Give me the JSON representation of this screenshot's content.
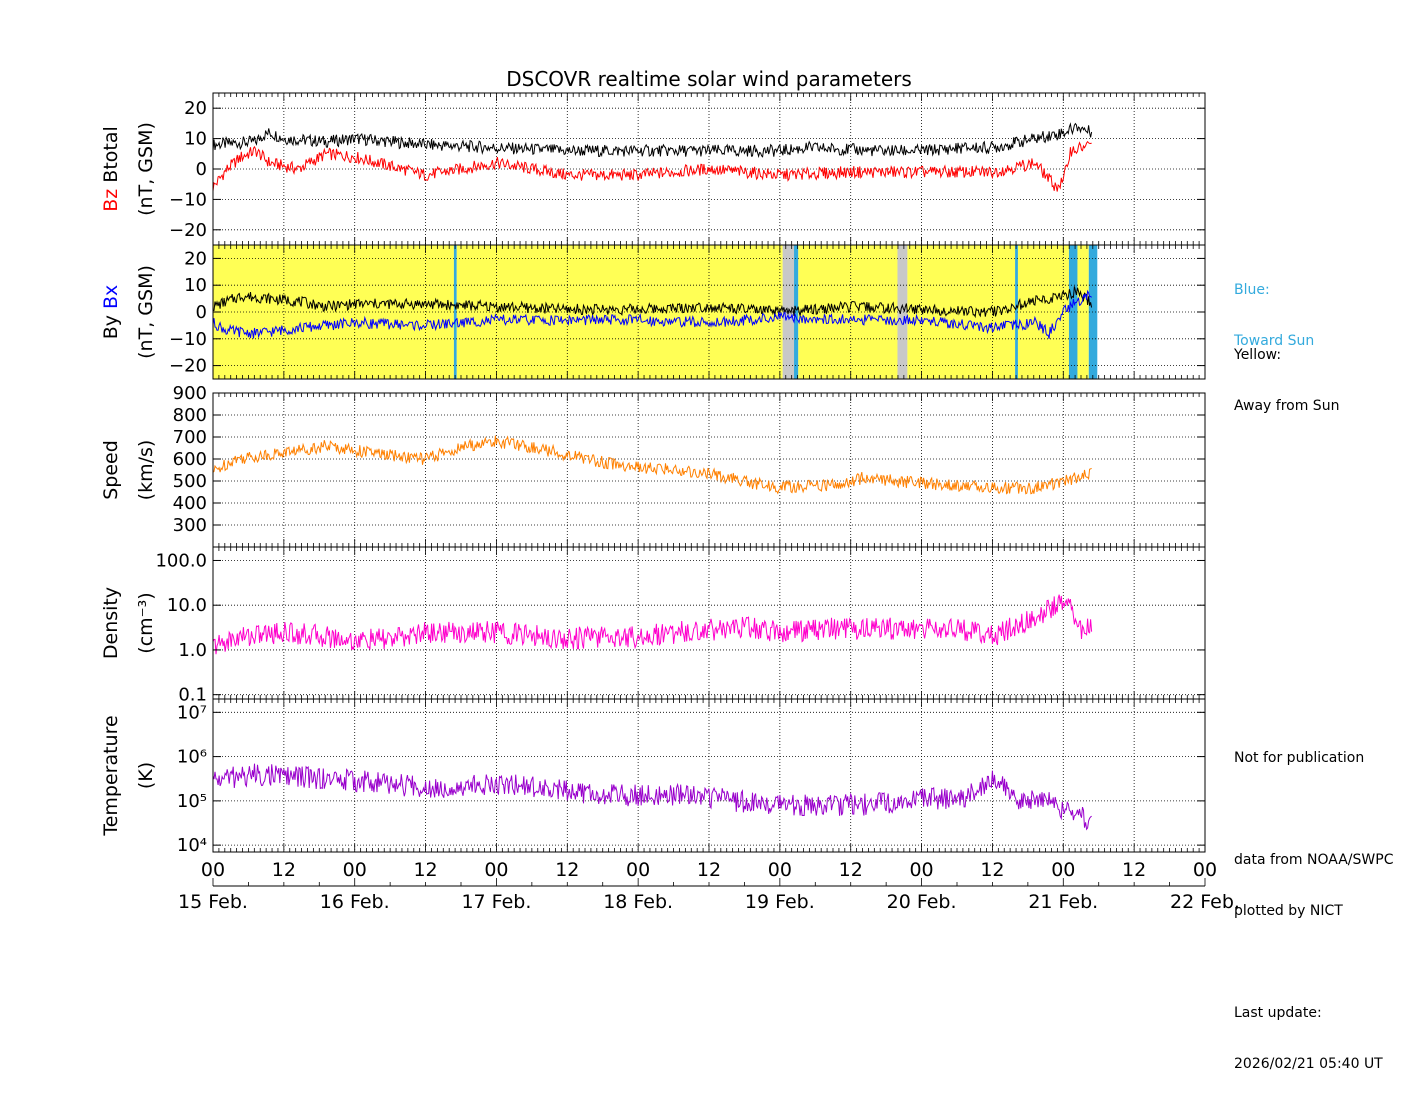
{
  "title": "DSCOVR realtime solar wind parameters",
  "colors": {
    "btotal": "#000000",
    "bz": "#ff0000",
    "by": "#000000",
    "bx": "#0000ff",
    "speed": "#ff8000",
    "density": "#ff00cc",
    "temperature": "#9900cc",
    "away_bg": "#ffff55",
    "toward_bg": "#33aadd",
    "gap_bg": "#c8c8c8"
  },
  "legend_side": {
    "toward": [
      "Blue:",
      "Toward Sun"
    ],
    "away": [
      "Yellow:",
      "Away from Sun"
    ]
  },
  "notes": {
    "publication": "Not for publication",
    "source": "data from NOAA/SWPC",
    "plotter": "plotted by NICT",
    "update_label": "Last update:",
    "update_time": "2026/02/21 05:40 UT"
  },
  "x_axis": {
    "hour_labels": [
      "00",
      "12",
      "00",
      "12",
      "00",
      "12",
      "00",
      "12",
      "00",
      "12",
      "00",
      "12",
      "00",
      "12",
      "00"
    ],
    "date_labels": [
      "15 Feb.",
      "16 Feb.",
      "17 Feb.",
      "18 Feb.",
      "19 Feb.",
      "20 Feb.",
      "21 Feb.",
      "22 Feb."
    ]
  },
  "chart_data": [
    {
      "type": "line",
      "ylabel": [
        "Btotal",
        "Bz",
        "(nT, GSM)"
      ],
      "ylim": [
        -25,
        25
      ],
      "yticks": [
        "20",
        "10",
        "0",
        "−10",
        "−20"
      ],
      "xlim_days": [
        0,
        7
      ],
      "series": [
        {
          "name": "Btotal",
          "x": [
            0,
            0.3,
            0.35,
            0.4,
            0.5,
            0.8,
            1.0,
            1.5,
            2.0,
            2.5,
            3.0,
            3.5,
            4.0,
            4.2,
            4.7,
            5.0,
            5.3,
            5.5,
            5.7,
            5.8,
            5.9,
            6.0,
            6.1,
            6.2
          ],
          "values": [
            8,
            9,
            11,
            12,
            10,
            9,
            10,
            8,
            7,
            6,
            6,
            6,
            6,
            7,
            6,
            6,
            7,
            7,
            9,
            10,
            11,
            12,
            14,
            12
          ]
        },
        {
          "name": "Bz",
          "x": [
            0,
            0.1,
            0.2,
            0.3,
            0.4,
            0.6,
            0.8,
            1.0,
            1.5,
            2.0,
            2.5,
            3.0,
            3.5,
            4.0,
            4.5,
            5.0,
            5.5,
            5.8,
            5.95,
            6.0,
            6.05,
            6.2
          ],
          "values": [
            -6,
            0,
            4,
            6,
            2,
            0,
            5,
            4,
            -2,
            2,
            -2,
            -2,
            0,
            -2,
            -1,
            -1,
            -1,
            2,
            -6,
            -4,
            6,
            8
          ]
        }
      ]
    },
    {
      "type": "line",
      "ylabel": [
        "By",
        "Bx",
        "(nT, GSM)"
      ],
      "ylim": [
        -25,
        25
      ],
      "yticks": [
        "20",
        "10",
        "0",
        "−10",
        "−20"
      ],
      "series": [
        {
          "name": "By",
          "x": [
            0,
            0.2,
            0.4,
            0.6,
            0.8,
            1.0,
            1.5,
            2.0,
            2.5,
            3.0,
            3.5,
            4.0,
            4.5,
            5.0,
            5.5,
            5.8,
            6.0,
            6.1,
            6.2
          ],
          "values": [
            2,
            6,
            5,
            4,
            2,
            3,
            3,
            2,
            1,
            1,
            2,
            0,
            2,
            1,
            0,
            4,
            6,
            8,
            3
          ]
        },
        {
          "name": "Bx",
          "x": [
            0,
            0.1,
            0.3,
            0.6,
            1.0,
            1.5,
            2.0,
            2.5,
            3.0,
            3.5,
            4.0,
            4.5,
            5.0,
            5.5,
            5.8,
            5.9,
            6.0,
            6.1,
            6.2
          ],
          "values": [
            -4,
            -7,
            -8,
            -6,
            -4,
            -5,
            -3,
            -3,
            -3,
            -4,
            -2,
            -3,
            -3,
            -6,
            -4,
            -8,
            0,
            4,
            7
          ]
        }
      ],
      "imf_sector": [
        {
          "from": 0.0,
          "to": 1.7,
          "polarity": "away"
        },
        {
          "from": 1.7,
          "to": 1.72,
          "polarity": "toward"
        },
        {
          "from": 1.72,
          "to": 4.02,
          "polarity": "away"
        },
        {
          "from": 4.02,
          "to": 4.1,
          "polarity": "gap"
        },
        {
          "from": 4.1,
          "to": 4.13,
          "polarity": "toward"
        },
        {
          "from": 4.13,
          "to": 4.83,
          "polarity": "away"
        },
        {
          "from": 4.83,
          "to": 4.9,
          "polarity": "gap"
        },
        {
          "from": 4.9,
          "to": 5.66,
          "polarity": "away"
        },
        {
          "from": 5.66,
          "to": 5.68,
          "polarity": "toward"
        },
        {
          "from": 5.68,
          "to": 6.04,
          "polarity": "away"
        },
        {
          "from": 6.04,
          "to": 6.1,
          "polarity": "toward"
        },
        {
          "from": 6.1,
          "to": 6.18,
          "polarity": "away"
        },
        {
          "from": 6.18,
          "to": 6.24,
          "polarity": "toward"
        }
      ]
    },
    {
      "type": "line",
      "ylabel": [
        "Speed",
        "(km/s)"
      ],
      "ylim": [
        200,
        900
      ],
      "yticks": [
        "900",
        "800",
        "700",
        "600",
        "500",
        "400",
        "300"
      ],
      "series": [
        {
          "name": "Speed",
          "x": [
            0,
            0.15,
            0.4,
            0.6,
            0.8,
            1.0,
            1.2,
            1.5,
            1.8,
            2.0,
            2.2,
            2.5,
            2.8,
            3.0,
            3.3,
            3.6,
            3.8,
            4.0,
            4.3,
            4.5,
            4.6,
            4.8,
            5.0,
            5.2,
            5.5,
            5.8,
            6.0,
            6.2
          ],
          "values": [
            540,
            600,
            620,
            640,
            660,
            640,
            620,
            600,
            660,
            680,
            660,
            620,
            580,
            560,
            550,
            520,
            490,
            470,
            480,
            490,
            520,
            500,
            490,
            480,
            470,
            470,
            500,
            530
          ]
        }
      ]
    },
    {
      "type": "line",
      "ylabel": [
        "Density",
        "(cm⁻³)"
      ],
      "yscale": "log",
      "ylim": [
        0.08,
        200
      ],
      "yticks": [
        "100.0",
        "10.0",
        "1.0",
        "0.1"
      ],
      "series": [
        {
          "name": "Density",
          "x": [
            0,
            0.2,
            0.5,
            0.8,
            1.0,
            1.3,
            1.5,
            2.0,
            2.3,
            2.5,
            2.8,
            3.0,
            3.3,
            3.6,
            3.8,
            4.0,
            4.3,
            4.5,
            4.8,
            5.0,
            5.3,
            5.5,
            5.7,
            5.9,
            6.0,
            6.05,
            6.1,
            6.2
          ],
          "values": [
            1.2,
            2,
            2.5,
            2,
            1.6,
            1.8,
            2.5,
            2.5,
            2,
            1.8,
            2,
            2,
            2.5,
            3,
            3.2,
            2.5,
            3,
            3,
            3,
            3,
            2.8,
            2,
            4,
            8,
            12,
            15,
            3,
            3
          ]
        }
      ]
    },
    {
      "type": "line",
      "ylabel": [
        "Temperature",
        "(K)"
      ],
      "yscale": "log",
      "ylim": [
        7000,
        20000000
      ],
      "yticks": [
        "10⁷",
        "10⁶",
        "10⁵",
        "10⁴"
      ],
      "series": [
        {
          "name": "Temperature",
          "x": [
            0,
            0.3,
            0.6,
            0.9,
            1.2,
            1.5,
            1.8,
            2.0,
            2.3,
            2.6,
            2.9,
            3.2,
            3.5,
            3.8,
            4.0,
            4.3,
            4.5,
            4.8,
            5.0,
            5.3,
            5.5,
            5.7,
            5.9,
            6.0,
            6.1,
            6.2
          ],
          "values": [
            300000,
            400000,
            350000,
            300000,
            250000,
            200000,
            220000,
            250000,
            200000,
            150000,
            130000,
            140000,
            120000,
            90000,
            80000,
            80000,
            80000,
            90000,
            110000,
            120000,
            300000,
            100000,
            100000,
            60000,
            60000,
            30000
          ]
        }
      ]
    }
  ]
}
